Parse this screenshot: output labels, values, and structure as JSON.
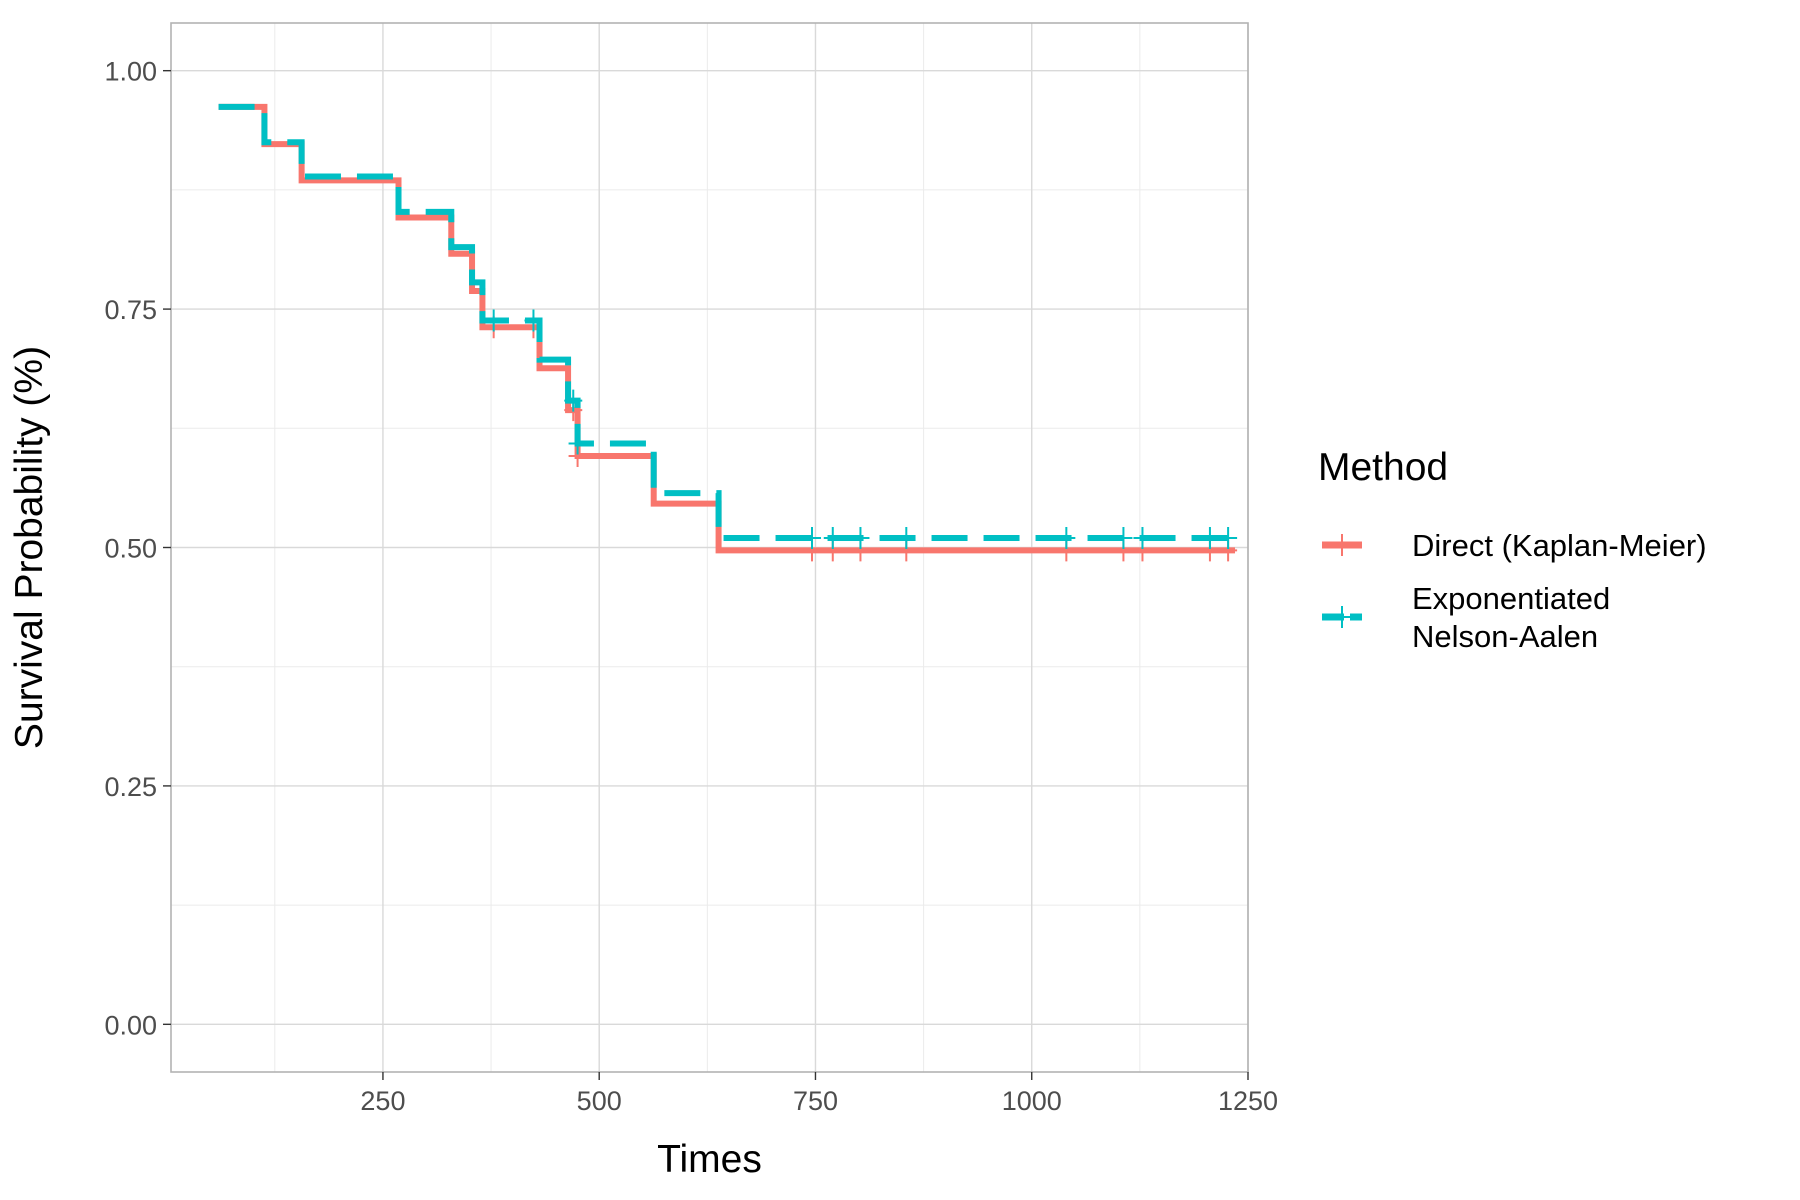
{
  "chart_data": {
    "type": "line",
    "step": true,
    "xlabel": "Times",
    "ylabel": "Survival Probability (%)",
    "xlim": [
      5,
      1250
    ],
    "ylim": [
      -0.05,
      1.05
    ],
    "x_ticks": [
      250,
      500,
      750,
      1000,
      1250
    ],
    "x_tick_labels": [
      "250",
      "500",
      "750",
      "1000",
      "1250"
    ],
    "y_ticks": [
      0,
      0.25,
      0.5,
      0.75,
      1.0
    ],
    "y_tick_labels": [
      "0.00",
      "0.25",
      "0.50",
      "0.75",
      "1.00"
    ],
    "grid": true,
    "legend": {
      "title": "Method",
      "position": "right",
      "entries": [
        {
          "lines": [
            "Direct (Kaplan-Meier)"
          ]
        },
        {
          "lines": [
            "Exponentiated",
            "Nelson-Aalen"
          ]
        }
      ]
    },
    "series": [
      {
        "name": "Direct (Kaplan-Meier)",
        "color": "#F8766D",
        "line_style": "solid",
        "steps": [
          [
            60,
            0.962
          ],
          [
            113,
            0.923
          ],
          [
            156,
            0.885
          ],
          [
            268,
            0.846
          ],
          [
            329,
            0.808
          ],
          [
            353,
            0.769
          ],
          [
            365,
            0.731
          ],
          [
            431,
            0.688
          ],
          [
            464,
            0.644
          ],
          [
            475,
            0.596
          ],
          [
            563,
            0.546
          ],
          [
            638,
            0.497
          ],
          [
            1235,
            0.497
          ]
        ],
        "censored": [
          378,
          424,
          470,
          475,
          746,
          770,
          802,
          855,
          1040,
          1106,
          1128,
          1206,
          1227
        ]
      },
      {
        "name": "Exponentiated Nelson-Aalen",
        "color": "#00BFC4",
        "line_style": "dashed",
        "steps": [
          [
            60,
            0.962
          ],
          [
            113,
            0.925
          ],
          [
            156,
            0.889
          ],
          [
            268,
            0.852
          ],
          [
            329,
            0.815
          ],
          [
            353,
            0.778
          ],
          [
            365,
            0.738
          ],
          [
            431,
            0.697
          ],
          [
            464,
            0.654
          ],
          [
            475,
            0.609
          ],
          [
            563,
            0.557
          ],
          [
            638,
            0.51
          ],
          [
            1235,
            0.51
          ]
        ],
        "censored": [
          378,
          424,
          470,
          475,
          746,
          770,
          802,
          855,
          1040,
          1106,
          1128,
          1206,
          1227
        ]
      }
    ]
  }
}
